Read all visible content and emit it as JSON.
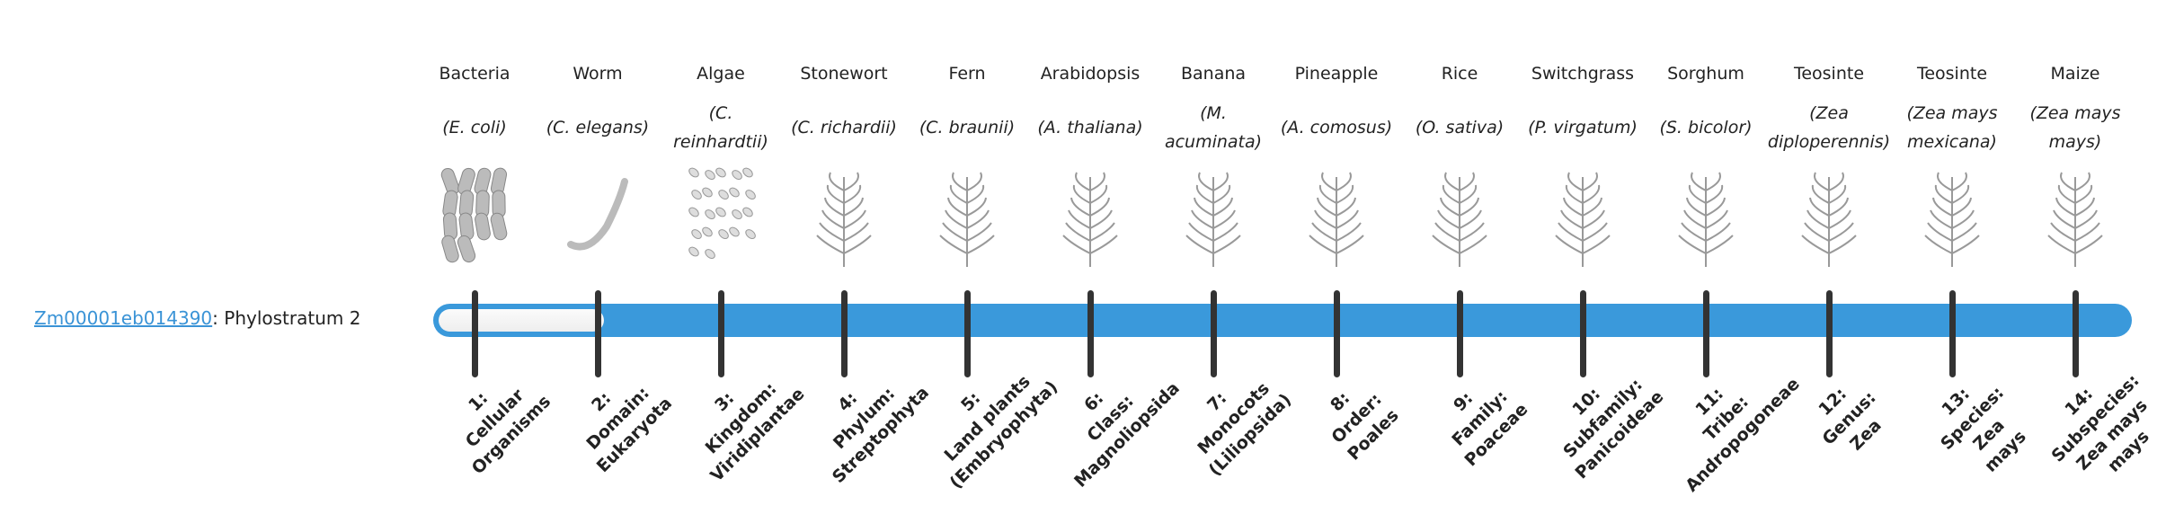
{
  "gene": {
    "id": "Zm00001eb014390",
    "suffix": ": Phylostratum 2",
    "phylostratum": 2
  },
  "colors": {
    "bar": "#3a99db",
    "link": "#3a93d6",
    "tick": "#333333"
  },
  "organisms": [
    {
      "common": "Bacteria",
      "sci": "(E. coli)",
      "icon": "bacteria-illustration"
    },
    {
      "common": "Worm",
      "sci": "(C. elegans)",
      "icon": "worm-illustration"
    },
    {
      "common": "Algae",
      "sci": "(C. reinhardtii)",
      "icon": "algae-illustration"
    },
    {
      "common": "Stonewort",
      "sci": "(C. richardii)",
      "icon": "stonewort-illustration"
    },
    {
      "common": "Fern",
      "sci": "(C. braunii)",
      "icon": "fern-illustration"
    },
    {
      "common": "Arabidopsis",
      "sci": "(A. thaliana)",
      "icon": "arabidopsis-illustration"
    },
    {
      "common": "Banana",
      "sci": "(M. acuminata)",
      "icon": "banana-illustration"
    },
    {
      "common": "Pineapple",
      "sci": "(A. comosus)",
      "icon": "pineapple-illustration"
    },
    {
      "common": "Rice",
      "sci": "(O. sativa)",
      "icon": "rice-illustration"
    },
    {
      "common": "Switchgrass",
      "sci": "(P. virgatum)",
      "icon": "switchgrass-illustration"
    },
    {
      "common": "Sorghum",
      "sci": "(S. bicolor)",
      "icon": "sorghum-illustration"
    },
    {
      "common": "Teosinte",
      "sci": "(Zea diploperennis)",
      "icon": "teosinte-illustration"
    },
    {
      "common": "Teosinte",
      "sci": "(Zea mays mexicana)",
      "icon": "teosinte-illustration"
    },
    {
      "common": "Maize",
      "sci": "(Zea mays mays)",
      "icon": "maize-illustration"
    }
  ],
  "strata": [
    [
      "1:",
      "Cellular",
      "Organisms"
    ],
    [
      "2:",
      "Domain:",
      "Eukaryota"
    ],
    [
      "3:",
      "Kingdom:",
      "Viridiplantae"
    ],
    [
      "4:",
      "Phylum:",
      "Streptophyta"
    ],
    [
      "5:",
      "Land plants",
      "(Embryophyta)"
    ],
    [
      "6:",
      "Class:",
      "Magnoliopsida"
    ],
    [
      "7:",
      "Monocots",
      "(Liliopsida)"
    ],
    [
      "8:",
      "Order:",
      "Poales"
    ],
    [
      "9:",
      "Family:",
      "Poaceae"
    ],
    [
      "10:",
      "Subfamily:",
      "Panicoideae"
    ],
    [
      "11:",
      "Tribe:",
      "Andropogoneae"
    ],
    [
      "12:",
      "Genus:",
      "Zea"
    ],
    [
      "13:",
      "Species:",
      "Zea",
      "mays"
    ],
    [
      "14:",
      "Subspecies:",
      "Zea mays",
      "mays"
    ]
  ]
}
